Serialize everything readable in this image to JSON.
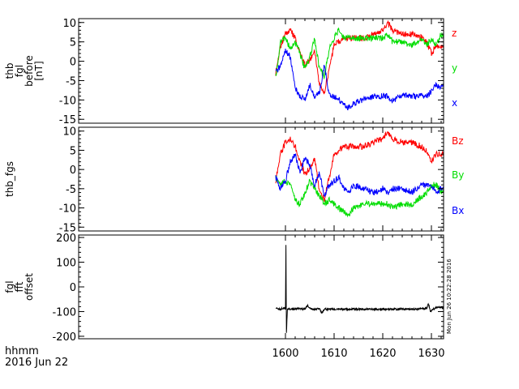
{
  "colors": {
    "red": "#ff0000",
    "green": "#00dd00",
    "blue": "#0000ff",
    "black": "#000000"
  },
  "time_axis": {
    "range": [
      1557.5,
      1632.5
    ],
    "tick_values": [
      1600,
      1610,
      1620,
      1630
    ],
    "tick_labels": [
      "1600",
      "1610",
      "1620",
      "1630"
    ]
  },
  "footer": {
    "line1": "hhmm",
    "line2": "2016 Jun 22"
  },
  "timestamp": "Mon Jun 26 10:22:28 2016",
  "chart_data": [
    {
      "type": "line",
      "ylabel_lines": [
        "thb",
        "fgl",
        "before",
        "[nT]"
      ],
      "ylim": [
        -16,
        11
      ],
      "yticks": [
        10,
        5,
        0,
        -5,
        -10,
        -15
      ],
      "ytick_labels": [
        "10",
        "5",
        "0",
        "-5",
        "-10",
        "-15"
      ],
      "x": [
        1598,
        1599,
        1600,
        1601,
        1602,
        1603,
        1604,
        1605,
        1606,
        1607,
        1608,
        1609,
        1610,
        1611,
        1612,
        1613,
        1614,
        1616,
        1618,
        1620,
        1621,
        1622,
        1624,
        1626,
        1628,
        1629,
        1630,
        1631,
        1632,
        1632.5
      ],
      "series": [
        {
          "name": "z",
          "color": "#ff0000",
          "values": [
            -3,
            4,
            7,
            8,
            6,
            2,
            -1,
            0,
            3,
            -6,
            -8,
            -2,
            4,
            5,
            6,
            6,
            6,
            6,
            7,
            8,
            10,
            8,
            7,
            7,
            6,
            5,
            2,
            4,
            4,
            4
          ]
        },
        {
          "name": "y",
          "color": "#00dd00",
          "values": [
            -4,
            5,
            6,
            3,
            5,
            2,
            -2,
            1,
            6,
            -2,
            -4,
            3,
            6,
            8,
            6,
            6,
            6,
            6,
            6,
            6,
            7,
            5,
            5,
            4,
            6,
            4,
            6,
            4,
            7,
            6
          ]
        },
        {
          "name": "x",
          "color": "#0000ff",
          "values": [
            -3,
            -1,
            3,
            1,
            -7,
            -9,
            -10,
            -6,
            -9,
            -8,
            -1,
            -9,
            -9,
            -10,
            -11,
            -12,
            -11,
            -10,
            -9,
            -9,
            -9,
            -10,
            -9,
            -9,
            -9,
            -9,
            -8,
            -6,
            -7,
            -6
          ]
        }
      ]
    },
    {
      "type": "line",
      "ylabel_lines": [
        "thb_fgs"
      ],
      "ylim": [
        -16,
        11
      ],
      "yticks": [
        10,
        5,
        0,
        -5,
        -10,
        -15
      ],
      "ytick_labels": [
        "10",
        "5",
        "0",
        "-5",
        "-10",
        "-15"
      ],
      "x": [
        1598,
        1599,
        1600,
        1601,
        1602,
        1603,
        1604,
        1605,
        1606,
        1607,
        1608,
        1609,
        1610,
        1611,
        1612,
        1613,
        1614,
        1616,
        1618,
        1620,
        1621,
        1622,
        1624,
        1626,
        1628,
        1629,
        1630,
        1631,
        1632,
        1632.5
      ],
      "series": [
        {
          "name": "Bz",
          "color": "#ff0000",
          "values": [
            -3,
            4,
            7,
            8,
            6,
            2,
            -1,
            0,
            3,
            -6,
            -8,
            -2,
            4,
            5,
            6,
            6,
            6,
            6,
            7,
            8,
            10,
            8,
            7,
            7,
            6,
            5,
            2,
            4,
            4,
            4
          ]
        },
        {
          "name": "By",
          "color": "#00dd00",
          "values": [
            -2,
            -4,
            -3,
            -4,
            -8,
            -9,
            -6,
            -3,
            -5,
            -7,
            -9,
            -8,
            -9,
            -10,
            -11,
            -12,
            -10,
            -9,
            -9,
            -9,
            -9,
            -10,
            -9,
            -9,
            -7,
            -6,
            -4,
            -4,
            -6,
            -5
          ]
        },
        {
          "name": "Bx",
          "color": "#0000ff",
          "values": [
            -2,
            -5,
            -3,
            2,
            4,
            -1,
            3,
            1,
            -4,
            -1,
            -7,
            -4,
            -3,
            -2,
            -5,
            -6,
            -4,
            -5,
            -6,
            -5,
            -6,
            -5,
            -5,
            -6,
            -4,
            -4,
            -4,
            -6,
            -5,
            -5
          ]
        }
      ]
    },
    {
      "type": "line",
      "ylabel_lines": [
        "fgl",
        "fft",
        "offset"
      ],
      "ylim": [
        -210,
        210
      ],
      "yticks": [
        200,
        100,
        0,
        -100,
        -200
      ],
      "ytick_labels": [
        "200",
        "100",
        "0",
        "-100",
        "-200"
      ],
      "x": [
        1598,
        1599,
        1599.5,
        1600,
        1600.1,
        1600.2,
        1600.4,
        1601,
        1603,
        1604,
        1604.5,
        1605,
        1606,
        1607,
        1607.5,
        1608,
        1610,
        1614,
        1618,
        1622,
        1626,
        1629,
        1629.4,
        1629.8,
        1630.5,
        1631.5,
        1632.5
      ],
      "series": [
        {
          "name": "",
          "color": "#000000",
          "values": [
            -88,
            -90,
            -86,
            -88,
            170,
            -190,
            -88,
            -90,
            -88,
            -90,
            -75,
            -88,
            -92,
            -88,
            -105,
            -90,
            -90,
            -90,
            -90,
            -90,
            -90,
            -88,
            -68,
            -100,
            -88,
            -80,
            -85
          ]
        }
      ]
    }
  ],
  "legend_labels": [
    {
      "text": "z",
      "color": "#ff0000"
    },
    {
      "text": "y",
      "color": "#00dd00"
    },
    {
      "text": "x",
      "color": "#0000ff"
    },
    {
      "text": "Bz",
      "color": "#ff0000"
    },
    {
      "text": "By",
      "color": "#00dd00"
    },
    {
      "text": "Bx",
      "color": "#0000ff"
    }
  ]
}
